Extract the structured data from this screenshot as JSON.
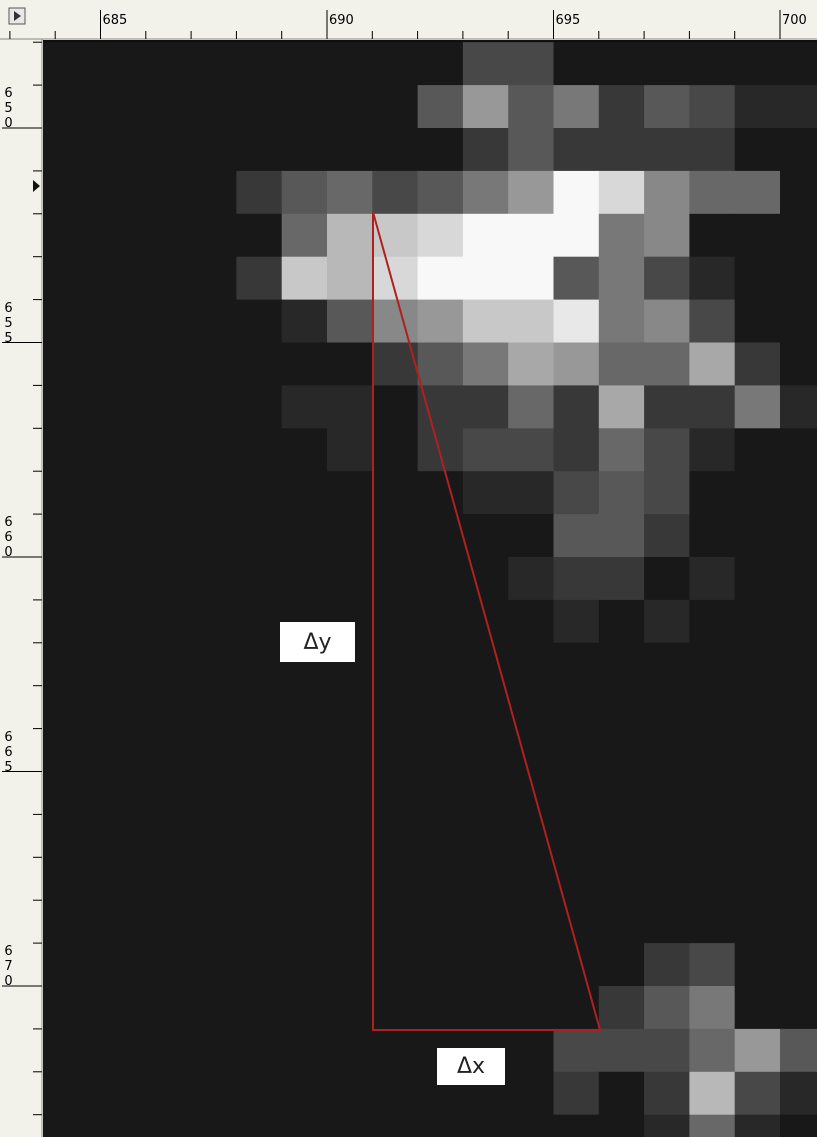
{
  "ruler_top": {
    "ticks": [
      685,
      690,
      695,
      700
    ]
  },
  "ruler_left": {
    "ticks": [
      650,
      655,
      660,
      665,
      670
    ]
  },
  "annotations": {
    "dy": "Δy",
    "dx": "Δx"
  }
}
